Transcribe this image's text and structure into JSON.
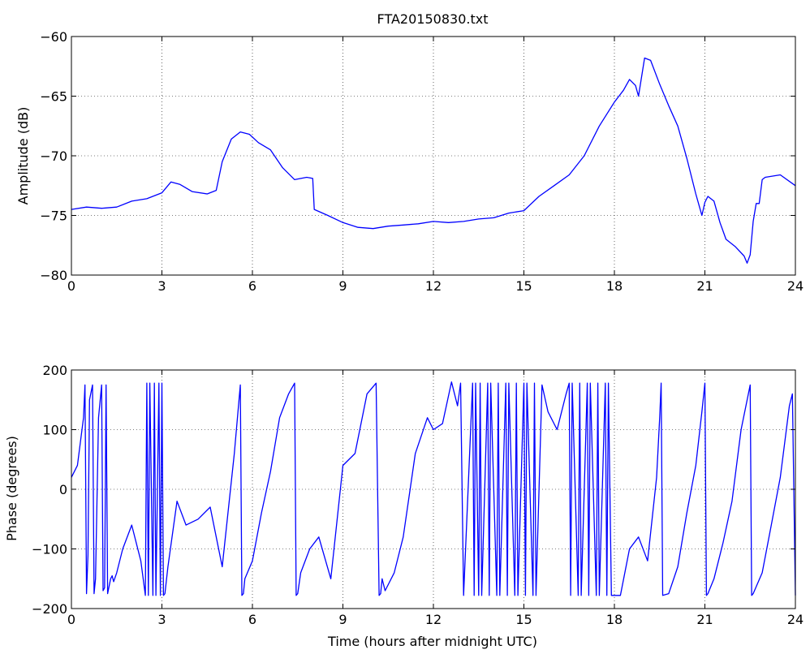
{
  "figure_title": "FTA20150830.txt",
  "chart_data": [
    {
      "type": "line",
      "title": "FTA20150830.txt",
      "xlabel": "",
      "ylabel": "Amplitude (dB)",
      "xlim": [
        0,
        24
      ],
      "ylim": [
        -80,
        -60
      ],
      "xticks": [
        0,
        3,
        6,
        9,
        12,
        15,
        18,
        21,
        24
      ],
      "xtick_labels": [
        "0",
        "3",
        "6",
        "9",
        "12",
        "15",
        "18",
        "21",
        "24"
      ],
      "yticks": [
        -80,
        -75,
        -70,
        -65,
        -60
      ],
      "ytick_labels": [
        "−80",
        "−75",
        "−70",
        "−65",
        "−60"
      ],
      "grid": true,
      "series": [
        {
          "color": "#0000ff",
          "x": [
            0,
            0.5,
            1.0,
            1.5,
            2.0,
            2.5,
            3.0,
            3.3,
            3.6,
            4.0,
            4.5,
            4.8,
            5.0,
            5.3,
            5.6,
            5.9,
            6.2,
            6.6,
            7.0,
            7.4,
            7.8,
            8.0,
            8.05,
            8.5,
            9.0,
            9.5,
            10.0,
            10.5,
            11.0,
            11.5,
            12.0,
            12.5,
            13.0,
            13.5,
            14.0,
            14.5,
            15.0,
            15.5,
            16.0,
            16.5,
            17.0,
            17.5,
            18.0,
            18.3,
            18.5,
            18.7,
            18.8,
            19.0,
            19.2,
            19.5,
            19.8,
            20.1,
            20.4,
            20.7,
            20.9,
            21.0,
            21.1,
            21.3,
            21.5,
            21.7,
            22.0,
            22.3,
            22.4,
            22.5,
            22.6,
            22.7,
            22.8,
            22.9,
            23.0,
            23.5,
            24.0
          ],
          "y": [
            -74.5,
            -74.3,
            -74.4,
            -74.3,
            -73.8,
            -73.6,
            -73.1,
            -72.2,
            -72.4,
            -73.0,
            -73.2,
            -72.9,
            -70.5,
            -68.6,
            -68.0,
            -68.2,
            -68.9,
            -69.5,
            -71.0,
            -72.0,
            -71.8,
            -71.9,
            -74.5,
            -75.0,
            -75.6,
            -76.0,
            -76.1,
            -75.9,
            -75.8,
            -75.7,
            -75.5,
            -75.6,
            -75.5,
            -75.3,
            -75.2,
            -74.8,
            -74.6,
            -73.4,
            -72.5,
            -71.6,
            -70.0,
            -67.5,
            -65.5,
            -64.5,
            -63.6,
            -64.1,
            -65.0,
            -61.8,
            -62.0,
            -64.0,
            -65.8,
            -67.5,
            -70.2,
            -73.2,
            -75.0,
            -73.9,
            -73.4,
            -73.8,
            -75.6,
            -77.0,
            -77.6,
            -78.4,
            -79.0,
            -78.3,
            -75.5,
            -74.0,
            -74.0,
            -72.0,
            -71.8,
            -71.6,
            -72.5
          ]
        }
      ]
    },
    {
      "type": "line",
      "title": "",
      "xlabel": "Time (hours after midnight UTC)",
      "ylabel": "Phase (degrees)",
      "xlim": [
        0,
        24
      ],
      "ylim": [
        -200,
        200
      ],
      "xticks": [
        0,
        3,
        6,
        9,
        12,
        15,
        18,
        21,
        24
      ],
      "xtick_labels": [
        "0",
        "3",
        "6",
        "9",
        "12",
        "15",
        "18",
        "21",
        "24"
      ],
      "yticks": [
        -200,
        -100,
        0,
        100,
        200
      ],
      "ytick_labels": [
        "−200",
        "−100",
        "0",
        "100",
        "200"
      ],
      "grid": true,
      "series": [
        {
          "color": "#0000ff",
          "x": [
            0,
            0.2,
            0.4,
            0.45,
            0.5,
            0.55,
            0.6,
            0.7,
            0.75,
            0.8,
            0.9,
            1.0,
            1.05,
            1.1,
            1.15,
            1.2,
            1.3,
            1.35,
            1.4,
            1.5,
            1.7,
            2.0,
            2.3,
            2.45,
            2.5,
            2.55,
            2.6,
            2.7,
            2.75,
            2.8,
            2.9,
            2.95,
            3.0,
            3.05,
            3.1,
            3.2,
            3.5,
            3.8,
            4.2,
            4.6,
            5.0,
            5.4,
            5.6,
            5.65,
            5.7,
            5.75,
            6.0,
            6.3,
            6.6,
            6.9,
            7.2,
            7.4,
            7.45,
            7.5,
            7.6,
            7.9,
            8.2,
            8.6,
            9.0,
            9.4,
            9.8,
            10.1,
            10.2,
            10.25,
            10.3,
            10.4,
            10.7,
            11.0,
            11.4,
            11.8,
            12.0,
            12.3,
            12.6,
            12.8,
            12.9,
            13.0,
            13.3,
            13.35,
            13.4,
            13.5,
            13.55,
            13.6,
            13.8,
            13.85,
            13.9,
            14.1,
            14.15,
            14.2,
            14.4,
            14.45,
            14.5,
            14.7,
            14.75,
            14.8,
            15.0,
            15.05,
            15.1,
            15.3,
            15.35,
            15.4,
            15.6,
            15.8,
            16.1,
            16.4,
            16.5,
            16.55,
            16.6,
            16.8,
            16.85,
            16.9,
            17.1,
            17.15,
            17.2,
            17.4,
            17.45,
            17.5,
            17.7,
            17.75,
            17.8,
            17.9,
            18.2,
            18.5,
            18.8,
            19.1,
            19.4,
            19.5,
            19.55,
            19.6,
            19.8,
            20.1,
            20.4,
            20.7,
            20.9,
            21.0,
            21.05,
            21.1,
            21.3,
            21.6,
            21.9,
            22.2,
            22.5,
            22.55,
            22.6,
            22.9,
            23.2,
            23.5,
            23.8,
            23.9,
            24.0
          ],
          "y": [
            20,
            40,
            120,
            175,
            -175,
            -110,
            150,
            175,
            -175,
            -150,
            120,
            175,
            -170,
            -165,
            175,
            -175,
            -150,
            -145,
            -155,
            -140,
            -100,
            -60,
            -120,
            -178,
            178,
            -178,
            178,
            -178,
            178,
            -178,
            178,
            -178,
            178,
            -178,
            -175,
            -130,
            -20,
            -60,
            -50,
            -30,
            -130,
            60,
            175,
            -178,
            -175,
            -150,
            -120,
            -40,
            30,
            120,
            160,
            178,
            -178,
            -175,
            -140,
            -100,
            -80,
            -150,
            40,
            60,
            160,
            178,
            -178,
            -175,
            -150,
            -170,
            -140,
            -80,
            60,
            120,
            100,
            110,
            180,
            140,
            178,
            -178,
            178,
            -178,
            178,
            -178,
            178,
            -178,
            178,
            -178,
            178,
            -178,
            178,
            -178,
            178,
            -178,
            178,
            -178,
            178,
            -178,
            178,
            -178,
            178,
            -178,
            178,
            -178,
            175,
            130,
            100,
            160,
            178,
            -178,
            178,
            -178,
            178,
            -178,
            178,
            -178,
            178,
            -178,
            178,
            -178,
            178,
            -178,
            178,
            -178,
            -178,
            -100,
            -80,
            -120,
            20,
            120,
            178,
            -178,
            -175,
            -130,
            -40,
            40,
            130,
            178,
            -178,
            -175,
            -150,
            -90,
            -20,
            100,
            175,
            -178,
            -175,
            -140,
            -60,
            20,
            140,
            160,
            -178
          ]
        }
      ]
    }
  ]
}
